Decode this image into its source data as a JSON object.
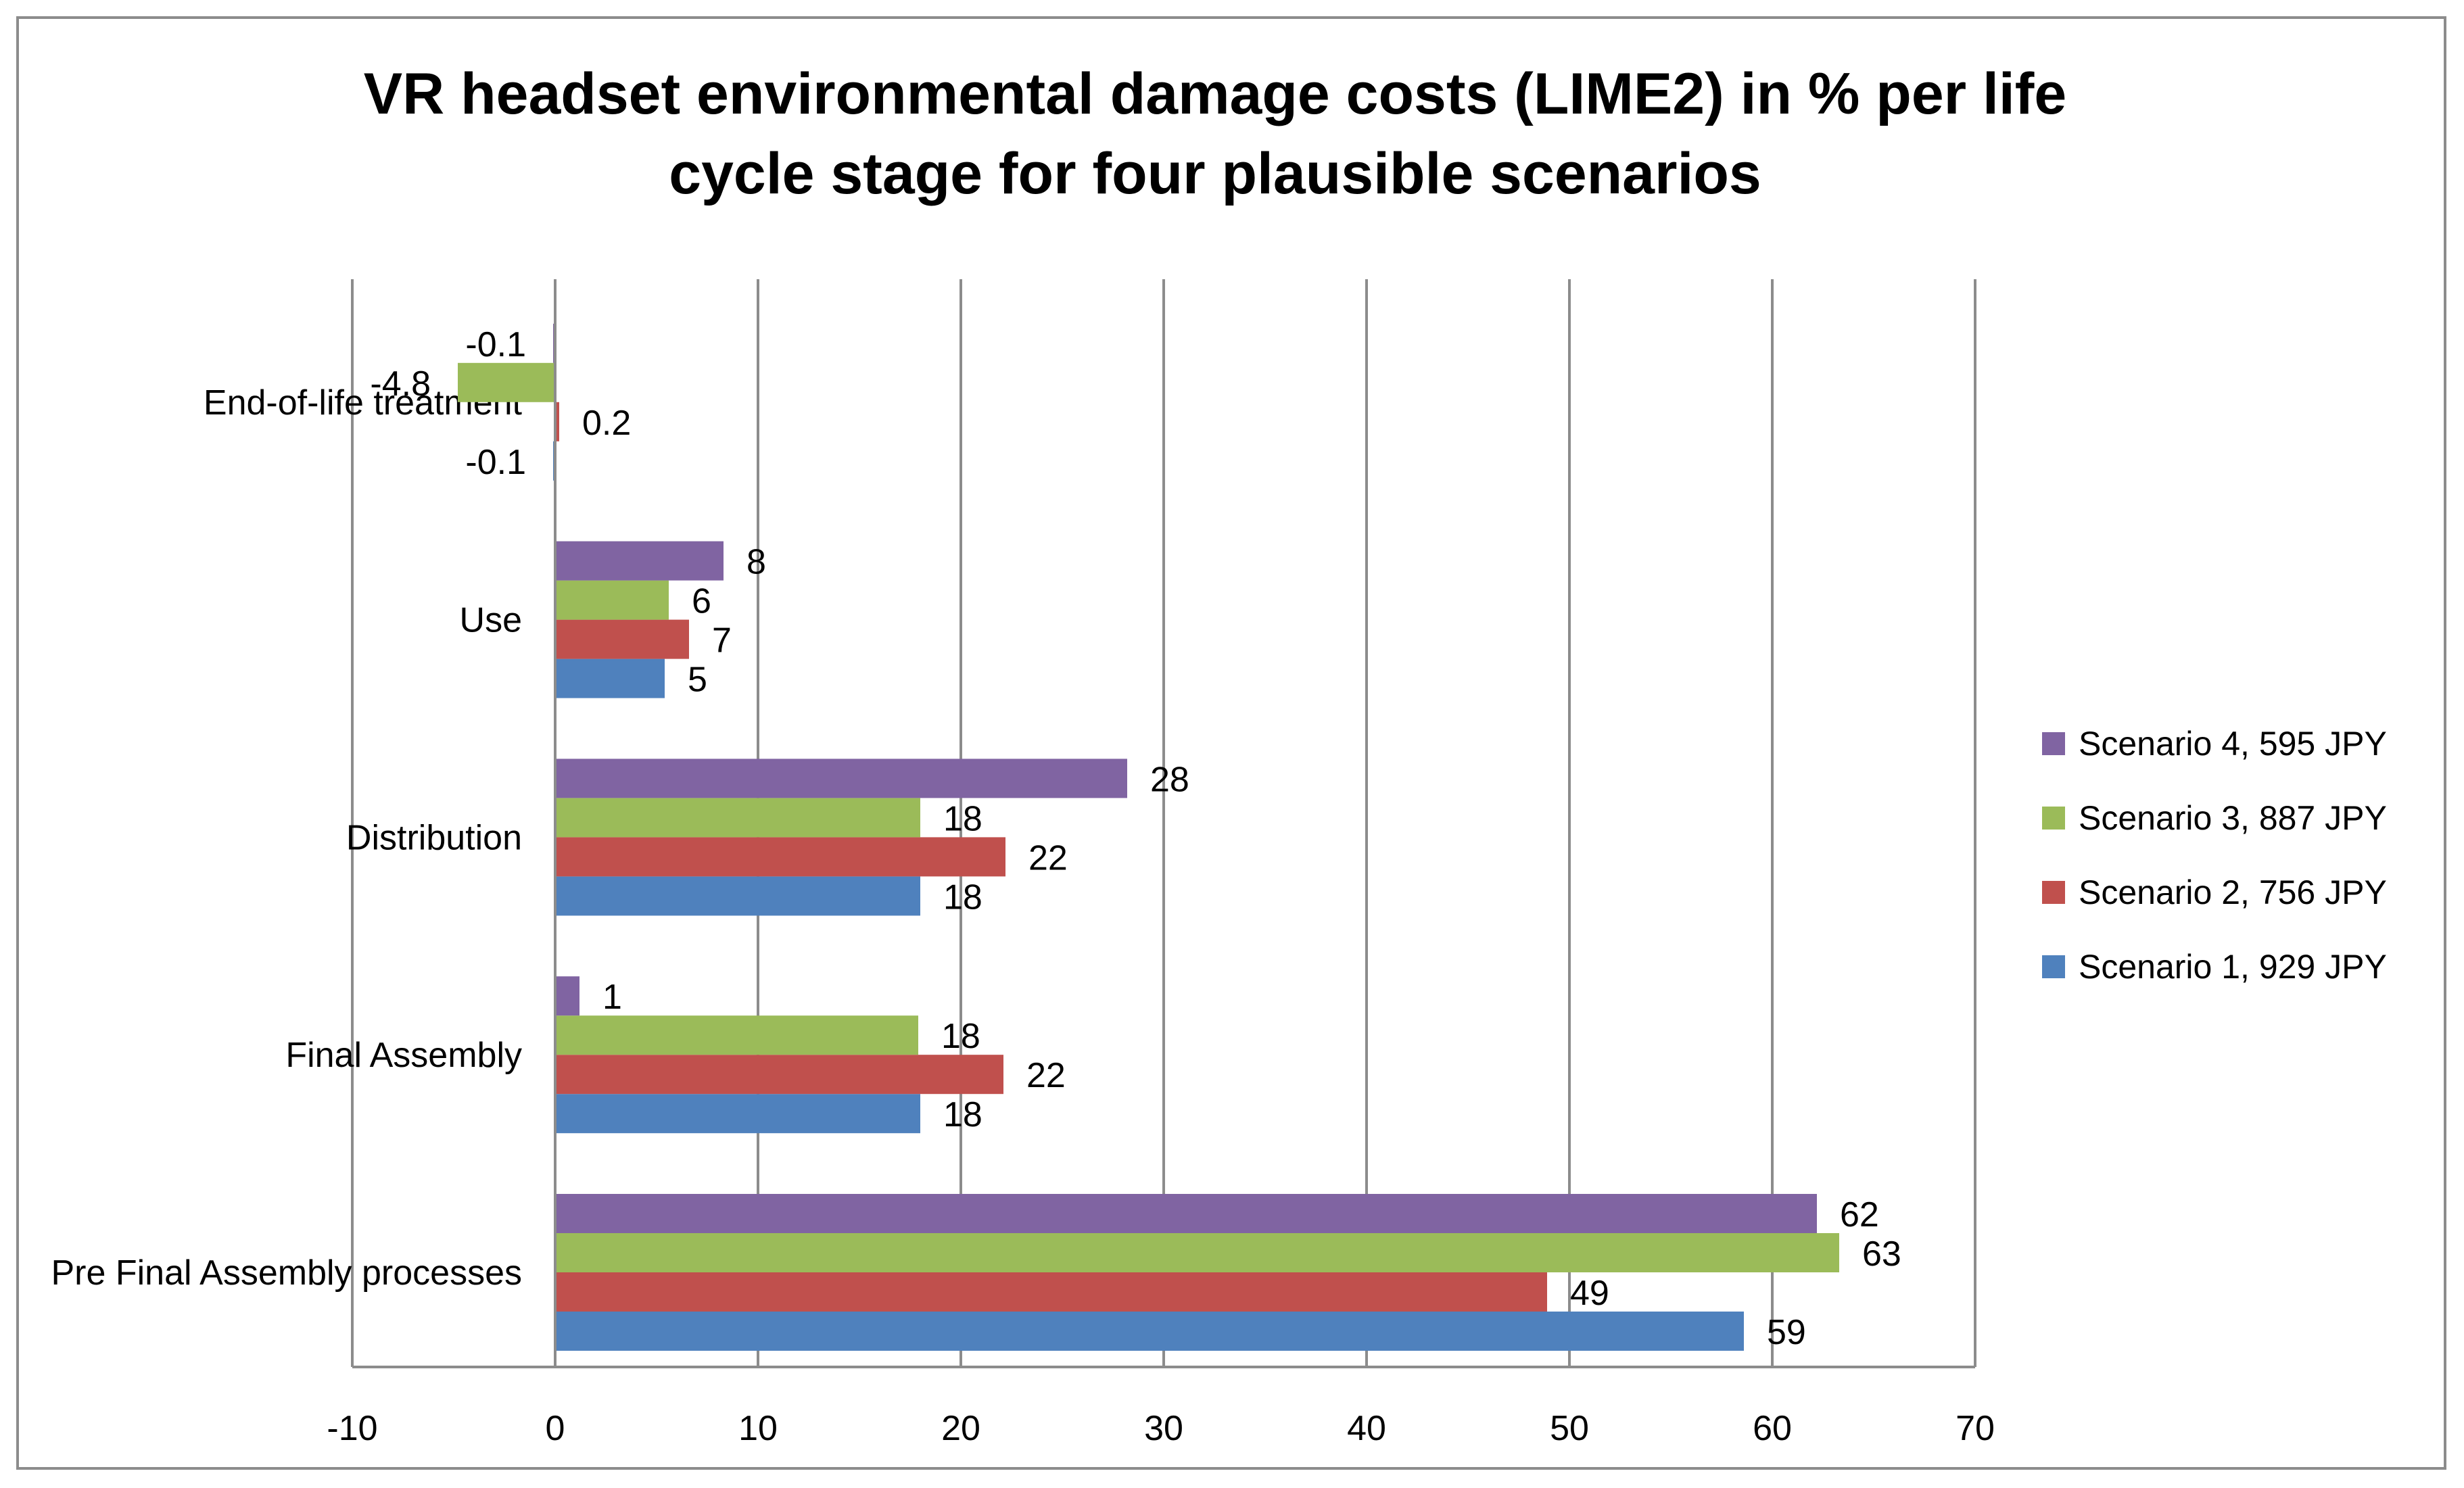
{
  "chart_data": {
    "type": "bar",
    "orientation": "horizontal",
    "title_lines": [
      "VR headset environmental damage costs (LIME2)  in % per life",
      "cycle stage for four plausible scenarios"
    ],
    "categories": [
      "Pre Final Assembly processes",
      "Final Assembly",
      "Distribution",
      "Use",
      "End-of-life treatment"
    ],
    "series": [
      {
        "name": "Scenario 1, 929 JPY",
        "color": "#4f81bd",
        "values": [
          58.6,
          18,
          18,
          5.4,
          -0.1
        ],
        "labels": [
          "59",
          "18",
          "18",
          "5",
          "-0.1"
        ]
      },
      {
        "name": "Scenario 2, 756 JPY",
        "color": "#c0504d",
        "values": [
          48.9,
          22.1,
          22.2,
          6.6,
          0.2
        ],
        "labels": [
          "49",
          "22",
          "22",
          "7",
          "0.2"
        ]
      },
      {
        "name": "Scenario 3, 887 JPY",
        "color": "#9bbb59",
        "values": [
          63.3,
          17.9,
          18.0,
          5.6,
          -4.8
        ],
        "labels": [
          "63",
          "18",
          "18",
          "6",
          "-4.8"
        ]
      },
      {
        "name": "Scenario 4, 595 JPY",
        "color": "#8064a2",
        "values": [
          62.2,
          1.2,
          28.2,
          8.3,
          -0.1
        ],
        "labels": [
          "62",
          "1",
          "28",
          "8",
          "-0.1"
        ]
      }
    ],
    "xlim": [
      -10,
      70
    ],
    "x_ticks": [
      "-10",
      "0",
      "10",
      "20",
      "30",
      "40",
      "50",
      "60",
      "70"
    ],
    "grid": true,
    "legend_position": "right",
    "xlabel": "",
    "ylabel": ""
  }
}
